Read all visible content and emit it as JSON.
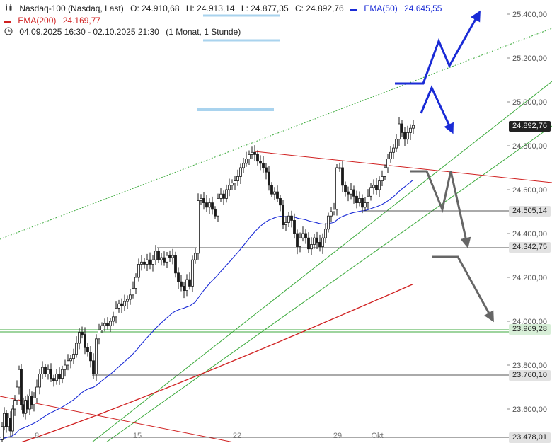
{
  "header": {
    "instrument": "Nasdaq-100 (Nasdaq, Last)",
    "open": "O: 24.910,68",
    "high": "H: 24.913,14",
    "low": "L: 24.877,35",
    "close": "C: 24.892,76",
    "ema50_label": "EMA(50)",
    "ema50_value": "24.645,55",
    "ema200_label": "EMA(200)",
    "ema200_value": "24.169,77",
    "range": "04.09.2025 16:30 - 02.10.2025 21:30",
    "interval": "(1 Monat, 1 Stunde)"
  },
  "price_labels": {
    "current": "24.892,76",
    "level_1": "24.505,14",
    "level_2": "24.342,75",
    "level_3": "23.969,28",
    "level_4": "23.760,10",
    "level_5": "23.478,01"
  },
  "colors": {
    "up": "#1a1a1a",
    "ema50": "#1a2bd6",
    "ema200": "#d02020",
    "channel": "#3caa3c",
    "resistance": "#d02020",
    "level_line": "#555555",
    "scenario_up": "#1a2bd6",
    "scenario_down": "#666666",
    "target_zone": "#a9d3ee"
  },
  "chart_data": {
    "type": "candlestick",
    "y_axis": {
      "ticks": [
        "25.400,00",
        "25.200,00",
        "25.000,00",
        "24.800,00",
        "24.600,00",
        "24.400,00",
        "24.200,00",
        "24.000,00",
        "23.800,00",
        "23.600,00"
      ],
      "tick_values": [
        25400,
        25200,
        25000,
        24800,
        24600,
        24400,
        24200,
        24000,
        23800,
        23600
      ],
      "range": [
        23470,
        25440
      ]
    },
    "x_axis": {
      "ticks": [
        "8",
        "15",
        "22",
        "29",
        "Okt"
      ]
    },
    "horizontal_levels": [
      24505.14,
      24342.75,
      23969.28,
      23760.1,
      23478.01
    ],
    "last_close": 24892.76,
    "ema50_last": 24645.55,
    "ema200_last": 24169.77,
    "price_path": [
      [
        0,
        23460
      ],
      [
        3,
        23520
      ],
      [
        6,
        23580
      ],
      [
        9,
        23520
      ],
      [
        12,
        23560
      ],
      [
        15,
        23500
      ],
      [
        18,
        23600
      ],
      [
        21,
        23640
      ],
      [
        24,
        23700
      ],
      [
        27,
        23780
      ],
      [
        30,
        23620
      ],
      [
        33,
        23580
      ],
      [
        36,
        23640
      ],
      [
        39,
        23600
      ],
      [
        42,
        23660
      ],
      [
        45,
        23620
      ],
      [
        48,
        23650
      ],
      [
        52,
        23700
      ],
      [
        56,
        23760
      ],
      [
        60,
        23790
      ],
      [
        64,
        23760
      ],
      [
        68,
        23780
      ],
      [
        72,
        23740
      ],
      [
        76,
        23730
      ],
      [
        80,
        23760
      ],
      [
        84,
        23740
      ],
      [
        88,
        23780
      ],
      [
        92,
        23800
      ],
      [
        96,
        23820
      ],
      [
        100,
        23830
      ],
      [
        104,
        23850
      ],
      [
        108,
        23900
      ],
      [
        112,
        23950
      ],
      [
        116,
        23940
      ],
      [
        120,
        23880
      ],
      [
        124,
        23860
      ],
      [
        128,
        23820
      ],
      [
        132,
        23760
      ],
      [
        136,
        23920
      ],
      [
        140,
        23960
      ],
      [
        144,
        23980
      ],
      [
        148,
        23990
      ],
      [
        152,
        23980
      ],
      [
        156,
        24000
      ],
      [
        160,
        24020
      ],
      [
        164,
        24060
      ],
      [
        168,
        24080
      ],
      [
        172,
        24070
      ],
      [
        176,
        24090
      ],
      [
        180,
        24100
      ],
      [
        184,
        24120
      ],
      [
        188,
        24150
      ],
      [
        192,
        24200
      ],
      [
        196,
        24260
      ],
      [
        200,
        24270
      ],
      [
        204,
        24260
      ],
      [
        208,
        24280
      ],
      [
        212,
        24260
      ],
      [
        216,
        24280
      ],
      [
        220,
        24320
      ],
      [
        224,
        24280
      ],
      [
        228,
        24290
      ],
      [
        232,
        24270
      ],
      [
        236,
        24300
      ],
      [
        240,
        24290
      ],
      [
        244,
        24300
      ],
      [
        248,
        24220
      ],
      [
        252,
        24180
      ],
      [
        256,
        24160
      ],
      [
        260,
        24140
      ],
      [
        264,
        24190
      ],
      [
        268,
        24160
      ],
      [
        272,
        24280
      ],
      [
        276,
        24310
      ],
      [
        280,
        24550
      ],
      [
        284,
        24560
      ],
      [
        288,
        24540
      ],
      [
        292,
        24520
      ],
      [
        296,
        24540
      ],
      [
        300,
        24510
      ],
      [
        304,
        24480
      ],
      [
        308,
        24560
      ],
      [
        312,
        24580
      ],
      [
        316,
        24560
      ],
      [
        320,
        24600
      ],
      [
        324,
        24620
      ],
      [
        328,
        24630
      ],
      [
        332,
        24640
      ],
      [
        336,
        24660
      ],
      [
        340,
        24700
      ],
      [
        344,
        24720
      ],
      [
        348,
        24740
      ],
      [
        352,
        24760
      ],
      [
        356,
        24770
      ],
      [
        360,
        24760
      ],
      [
        364,
        24730
      ],
      [
        368,
        24720
      ],
      [
        372,
        24700
      ],
      [
        376,
        24680
      ],
      [
        380,
        24620
      ],
      [
        384,
        24580
      ],
      [
        388,
        24590
      ],
      [
        392,
        24560
      ],
      [
        396,
        24530
      ],
      [
        400,
        24440
      ],
      [
        404,
        24450
      ],
      [
        408,
        24480
      ],
      [
        412,
        24460
      ],
      [
        416,
        24400
      ],
      [
        420,
        24340
      ],
      [
        424,
        24380
      ],
      [
        428,
        24400
      ],
      [
        432,
        24380
      ],
      [
        436,
        24330
      ],
      [
        440,
        24350
      ],
      [
        444,
        24380
      ],
      [
        448,
        24360
      ],
      [
        452,
        24340
      ],
      [
        456,
        24380
      ],
      [
        460,
        24420
      ],
      [
        464,
        24480
      ],
      [
        468,
        24500
      ],
      [
        472,
        24510
      ],
      [
        476,
        24700
      ],
      [
        480,
        24700
      ],
      [
        484,
        24620
      ],
      [
        488,
        24590
      ],
      [
        492,
        24580
      ],
      [
        496,
        24600
      ],
      [
        500,
        24570
      ],
      [
        504,
        24540
      ],
      [
        508,
        24560
      ],
      [
        512,
        24520
      ],
      [
        516,
        24540
      ],
      [
        520,
        24570
      ],
      [
        524,
        24610
      ],
      [
        528,
        24620
      ],
      [
        532,
        24600
      ],
      [
        536,
        24640
      ],
      [
        540,
        24660
      ],
      [
        544,
        24700
      ],
      [
        548,
        24740
      ],
      [
        552,
        24770
      ],
      [
        556,
        24790
      ],
      [
        560,
        24830
      ],
      [
        564,
        24900
      ],
      [
        568,
        24860
      ],
      [
        572,
        24830
      ],
      [
        576,
        24860
      ],
      [
        580,
        24880
      ],
      [
        584,
        24893
      ]
    ]
  }
}
